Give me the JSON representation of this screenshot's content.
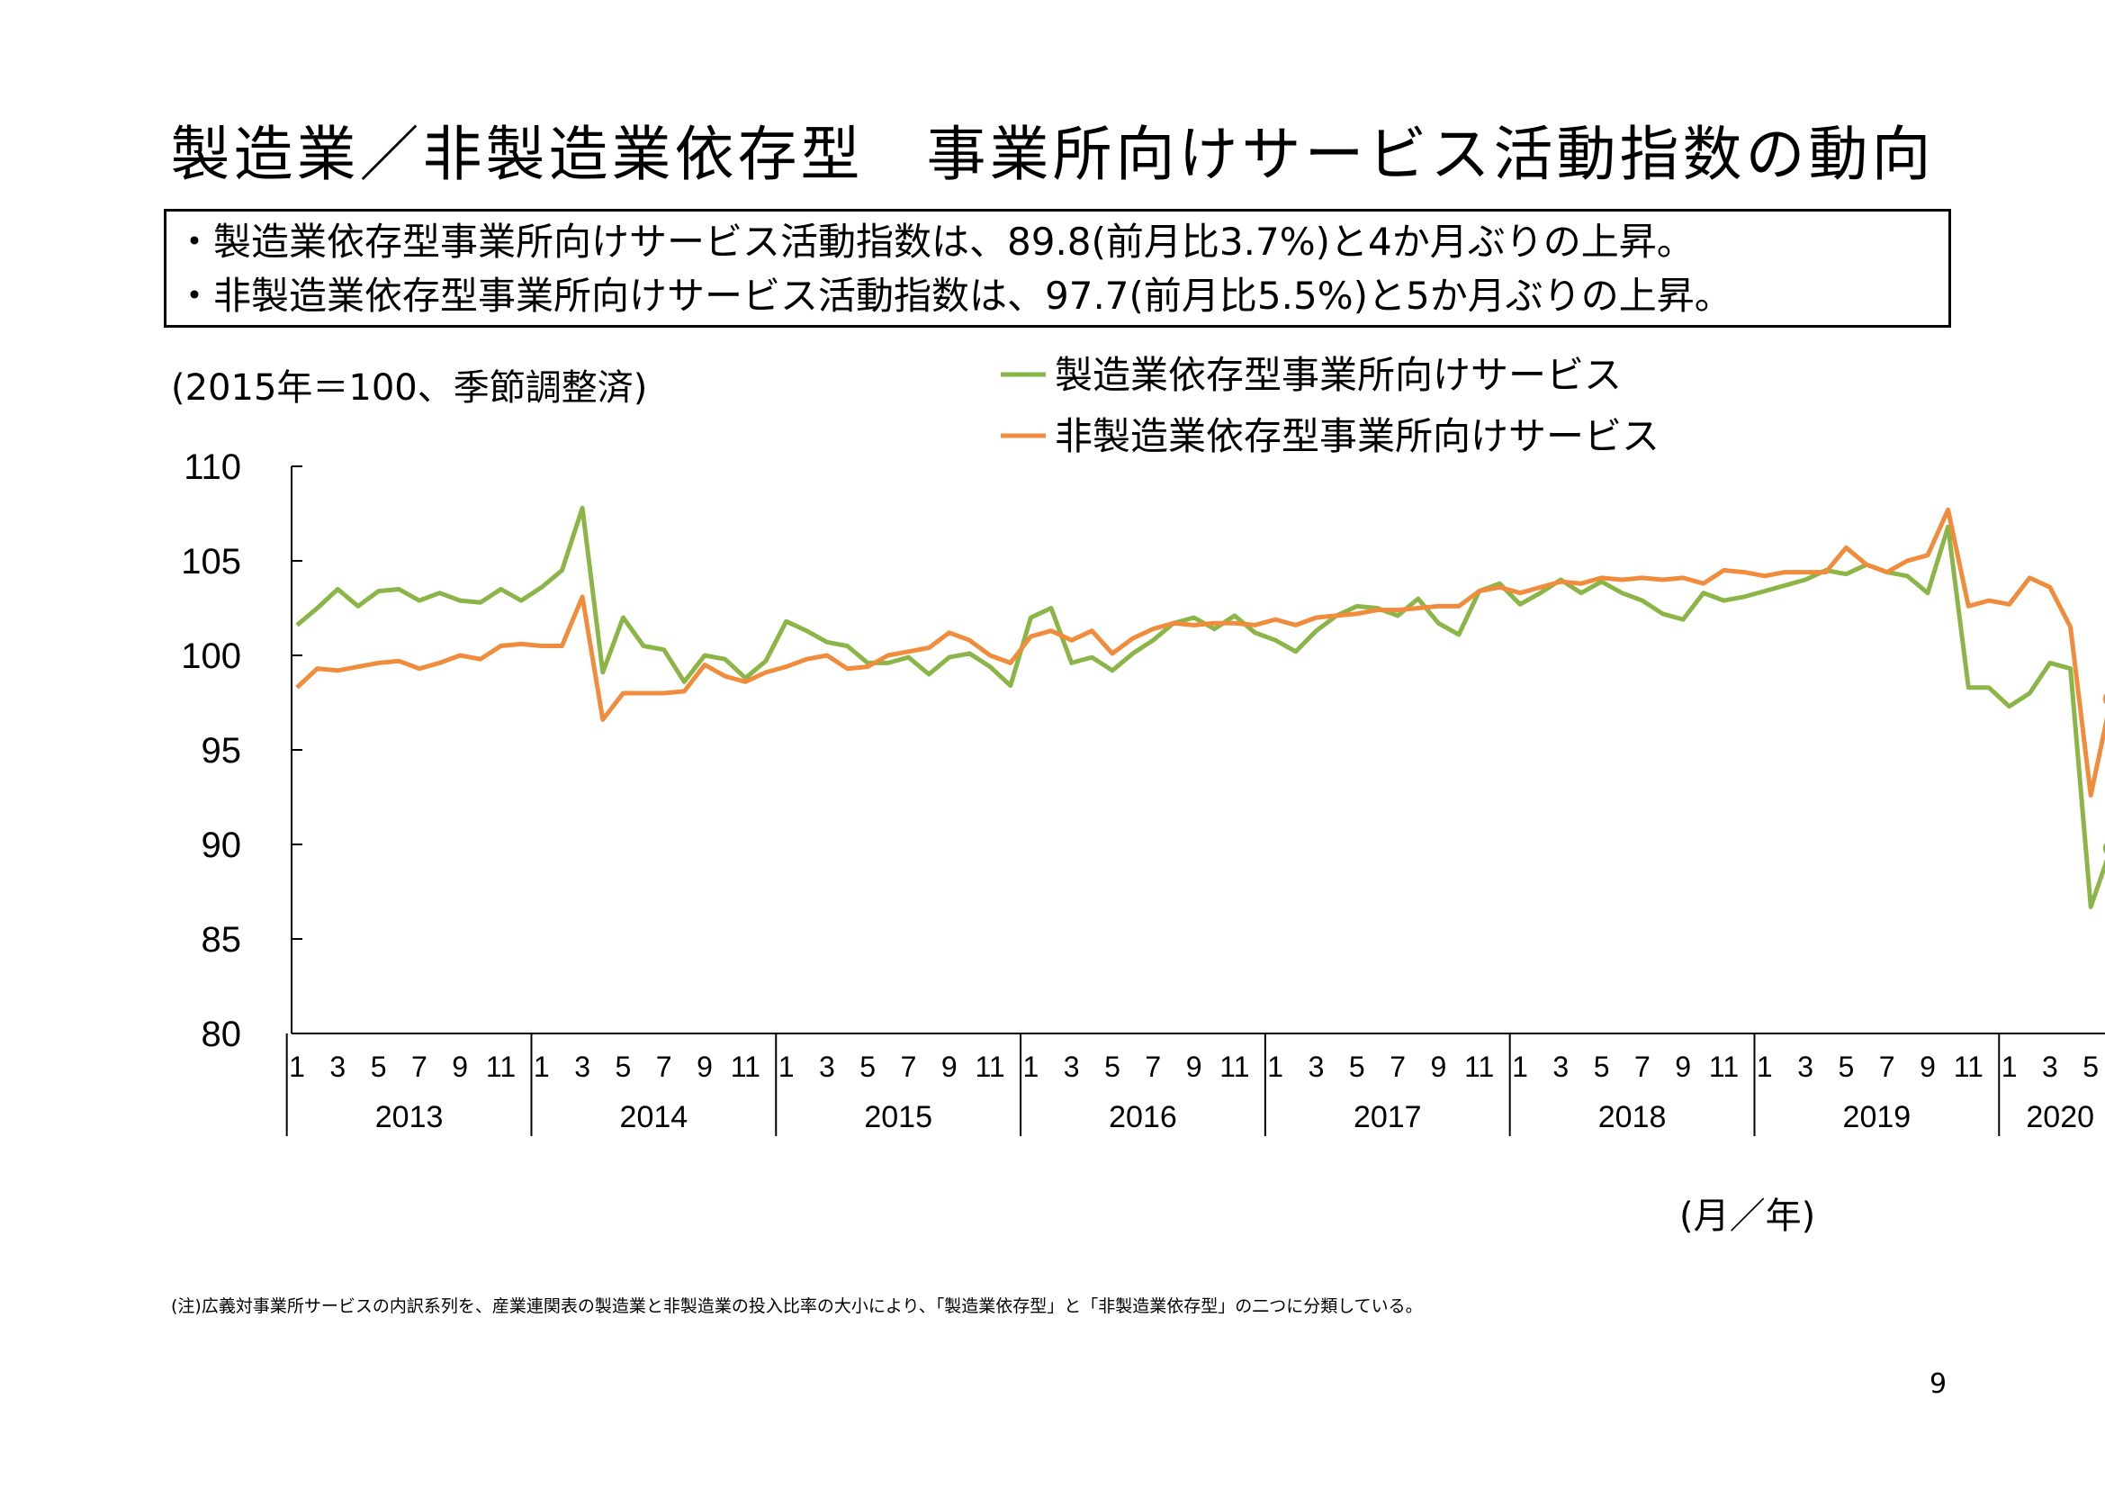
{
  "page": {
    "title": "製造業／非製造業依存型　事業所向けサービス活動指数の動向",
    "summary": [
      "・製造業依存型事業所向けサービス活動指数は、89.8(前月比3.7%)と4か月ぶりの上昇。",
      "・非製造業依存型事業所向けサービス活動指数は、97.7(前月比5.5%)と5か月ぶりの上昇。"
    ],
    "unit_note": "(2015年＝100、季節調整済)",
    "x_unit": "(月／年)",
    "footnote": "(注)広義対事業所サービスの内訳系列を、産業連関表の製造業と非製造業の投入比率の大小により、「製造業依存型」と「非製造業依存型」の二つに分類している。",
    "page_number": "9"
  },
  "chart_data": {
    "type": "line",
    "title": "",
    "xlabel": "(月／年)",
    "ylabel": "(2015年＝100、季節調整済)",
    "ylim": [
      80,
      110
    ],
    "yticks": [
      "110",
      "105",
      "100",
      "95",
      "90",
      "85",
      "80"
    ],
    "grid": false,
    "legend_position": "top-right",
    "x_start": "2013-01",
    "x_end": "2020-06",
    "month_labels": [
      "1",
      "3",
      "5",
      "7",
      "9",
      "11"
    ],
    "month_labels_partial": [
      "1",
      "3",
      "5"
    ],
    "years": [
      "2013",
      "2014",
      "2015",
      "2016",
      "2017",
      "2018",
      "2019",
      "2020"
    ],
    "series": [
      {
        "name": "製造業依存型事業所向けサービス",
        "color": "#8cb548",
        "end_label": "89.8",
        "values": [
          101.6,
          102.5,
          103.5,
          102.6,
          103.4,
          103.5,
          102.9,
          103.3,
          102.9,
          102.8,
          103.5,
          102.9,
          103.6,
          104.5,
          107.8,
          99.1,
          102.0,
          100.5,
          100.3,
          98.6,
          100.0,
          99.8,
          98.8,
          99.7,
          101.8,
          101.3,
          100.7,
          100.5,
          99.6,
          99.6,
          99.9,
          99.0,
          99.9,
          100.1,
          99.4,
          98.4,
          102.0,
          102.5,
          99.6,
          99.9,
          99.2,
          100.1,
          100.8,
          101.7,
          102.0,
          101.4,
          102.1,
          101.2,
          100.8,
          100.2,
          101.3,
          102.1,
          102.6,
          102.5,
          102.1,
          103.0,
          101.7,
          101.1,
          103.4,
          103.8,
          102.7,
          103.3,
          104.0,
          103.3,
          103.9,
          103.3,
          102.9,
          102.2,
          101.9,
          103.3,
          102.9,
          103.1,
          103.4,
          103.7,
          104.0,
          104.5,
          104.3,
          104.8,
          104.4,
          104.2,
          103.3,
          106.8,
          98.3,
          98.3,
          97.3,
          98.0,
          99.6,
          99.3,
          86.7,
          89.8
        ]
      },
      {
        "name": "非製造業依存型事業所向けサービス",
        "color": "#f08c3c",
        "end_label": "97.7",
        "values": [
          98.3,
          99.3,
          99.2,
          99.4,
          99.6,
          99.7,
          99.3,
          99.6,
          100.0,
          99.8,
          100.5,
          100.6,
          100.5,
          100.5,
          103.1,
          96.6,
          98.0,
          98.0,
          98.0,
          98.1,
          99.5,
          98.9,
          98.6,
          99.1,
          99.4,
          99.8,
          100.0,
          99.3,
          99.4,
          100.0,
          100.2,
          100.4,
          101.2,
          100.8,
          100.0,
          99.6,
          101.0,
          101.3,
          100.8,
          101.3,
          100.1,
          100.9,
          101.4,
          101.7,
          101.6,
          101.7,
          101.7,
          101.6,
          101.9,
          101.6,
          102.0,
          102.1,
          102.2,
          102.4,
          102.4,
          102.5,
          102.6,
          102.6,
          103.4,
          103.6,
          103.3,
          103.6,
          103.9,
          103.8,
          104.1,
          104.0,
          104.1,
          104.0,
          104.1,
          103.8,
          104.5,
          104.4,
          104.2,
          104.4,
          104.4,
          104.4,
          105.7,
          104.8,
          104.4,
          105.0,
          105.3,
          107.7,
          102.6,
          102.9,
          102.7,
          104.1,
          103.6,
          101.5,
          92.6,
          97.7
        ]
      }
    ]
  }
}
